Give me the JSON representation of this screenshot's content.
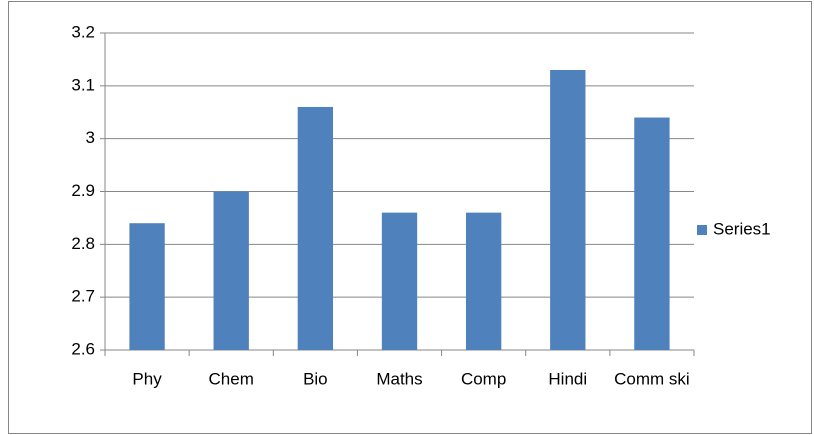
{
  "chart_data": {
    "type": "bar",
    "categories": [
      "Phy",
      "Chem",
      "Bio",
      "Maths",
      "Comp",
      "Hindi",
      "Comm ski"
    ],
    "series": [
      {
        "name": "Series1",
        "color": "#4f81bd",
        "values": [
          2.84,
          2.9,
          3.06,
          2.86,
          2.86,
          3.13,
          3.04
        ]
      }
    ],
    "ylim": [
      2.6,
      3.2
    ],
    "yticks": [
      2.6,
      2.7,
      2.8,
      2.9,
      3,
      3.1,
      3.2
    ],
    "grid": true,
    "legend": "right"
  }
}
